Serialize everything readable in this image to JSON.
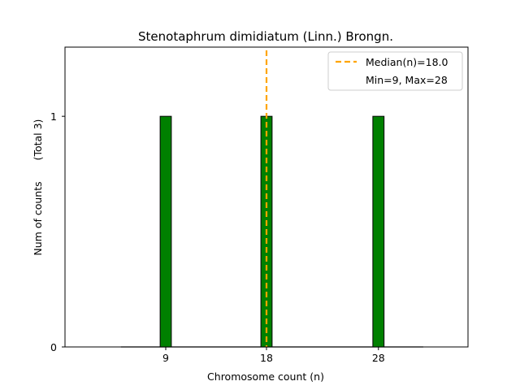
{
  "chart_data": {
    "type": "bar",
    "title": "Stenotaphrum dimidiatum (Linn.) Brongn.",
    "xlabel": "Chromosome count (n)",
    "ylabel": "Num of counts",
    "ylabel_note": "(Total 3)",
    "x_ticks": [
      "9",
      "18",
      "28"
    ],
    "y_ticks": [
      "0",
      "1"
    ],
    "xlim": [
      0,
      36
    ],
    "ylim": [
      0,
      1.3
    ],
    "bar_width": 1,
    "bars": [
      {
        "x": 9,
        "value": 1
      },
      {
        "x": 18,
        "value": 1
      },
      {
        "x": 28,
        "value": 1
      }
    ],
    "median": {
      "value": 18.0,
      "label": "Median(n)=18.0",
      "color": "#ffa500"
    },
    "range_label": "Min=9, Max=28",
    "bar_color": "#008000",
    "legend_position": "top-right",
    "grid": false
  }
}
